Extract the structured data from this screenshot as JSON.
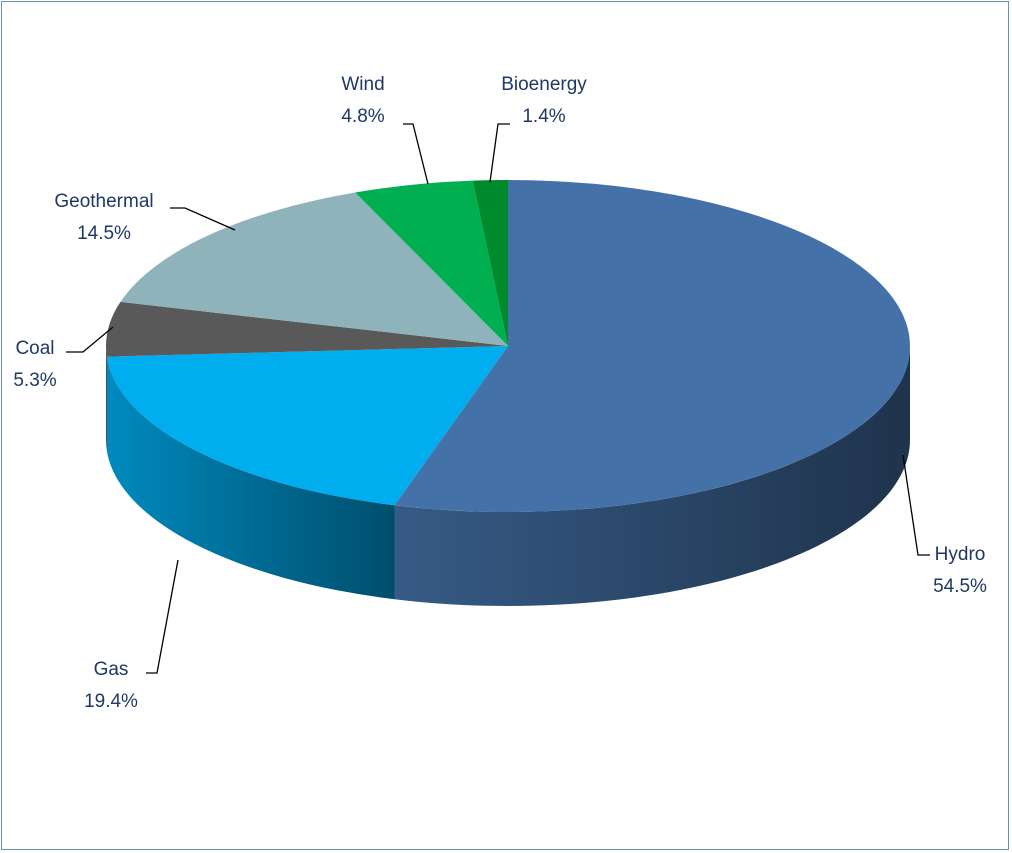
{
  "chart_data": {
    "type": "pie",
    "style": "3d",
    "title": "",
    "slices": [
      {
        "label": "Hydro",
        "value": 54.5,
        "display": "54.5%",
        "color": "#4472a8"
      },
      {
        "label": "Gas",
        "value": 19.4,
        "display": "19.4%",
        "color": "#00adef"
      },
      {
        "label": "Coal",
        "value": 5.3,
        "display": "5.3%",
        "color": "#595959"
      },
      {
        "label": "Geothermal",
        "value": 14.5,
        "display": "14.5%",
        "color": "#8fb3bb"
      },
      {
        "label": "Wind",
        "value": 4.8,
        "display": "4.8%",
        "color": "#00b050"
      },
      {
        "label": "Bioenergy",
        "value": 1.4,
        "display": "1.4%",
        "color": "#008a2e"
      }
    ],
    "data_labels": "outside with leader lines",
    "legend": "none"
  }
}
